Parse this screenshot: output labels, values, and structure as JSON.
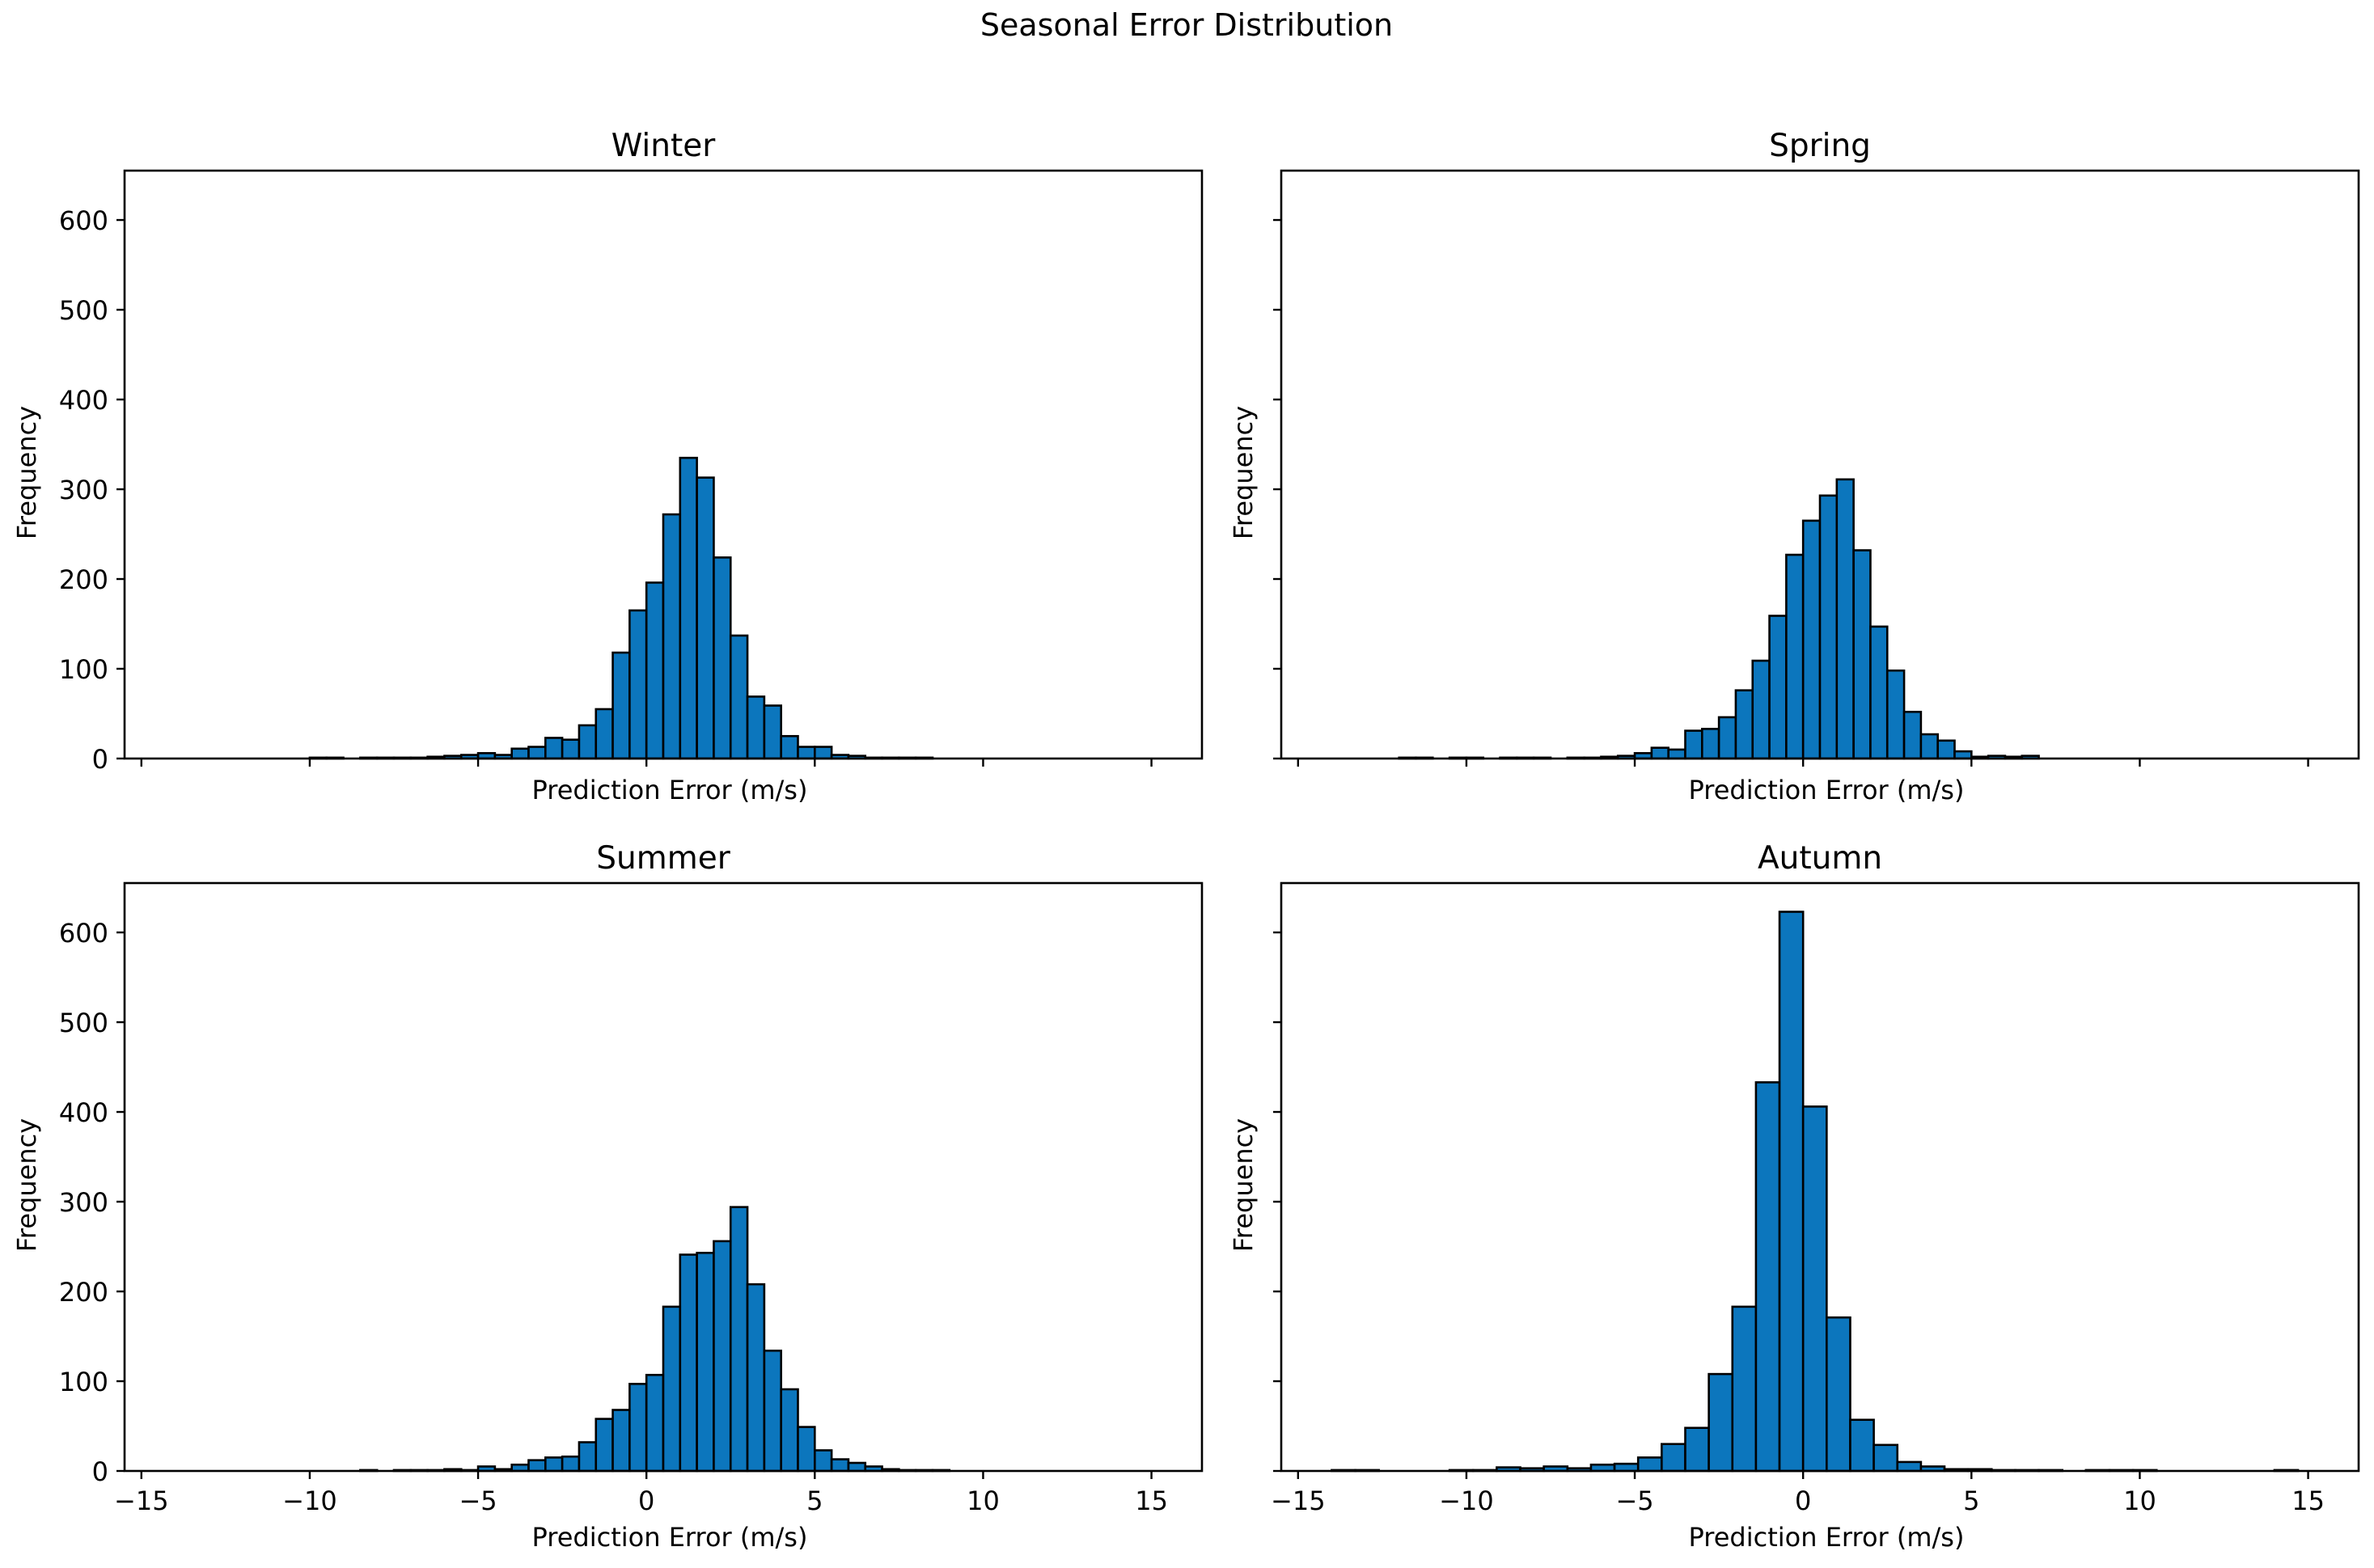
{
  "figure": {
    "title": "Seasonal Error Distribution"
  },
  "colors": {
    "bar_fill": "#0c76bd",
    "bar_edge": "#000000",
    "axes": "#000000"
  },
  "chart_data": [
    {
      "type": "bar",
      "title": "Winter",
      "xlabel": "Prediction Error (m/s)",
      "ylabel": "Frequency",
      "xlim": [
        -15.5,
        16.5
      ],
      "ylim": [
        0,
        655
      ],
      "xticks": [
        -15,
        -10,
        -5,
        0,
        5,
        10,
        15
      ],
      "yticks": [
        0,
        100,
        200,
        300,
        400,
        500,
        600
      ],
      "show_xtick_labels": false,
      "show_ytick_labels": true,
      "bins": [
        [
          -10.0,
          -9.5,
          1
        ],
        [
          -9.5,
          -9.0,
          1
        ],
        [
          -9.0,
          -8.5,
          0
        ],
        [
          -8.5,
          -8.0,
          1
        ],
        [
          -8.0,
          -7.5,
          1
        ],
        [
          -7.5,
          -7.0,
          1
        ],
        [
          -7.0,
          -6.5,
          1
        ],
        [
          -6.5,
          -6.0,
          2
        ],
        [
          -6.0,
          -5.5,
          3
        ],
        [
          -5.5,
          -5.0,
          4
        ],
        [
          -5.0,
          -4.5,
          6
        ],
        [
          -4.5,
          -4.0,
          4
        ],
        [
          -4.0,
          -3.5,
          11
        ],
        [
          -3.5,
          -3.0,
          13
        ],
        [
          -3.0,
          -2.5,
          23
        ],
        [
          -2.5,
          -2.0,
          21
        ],
        [
          -2.0,
          -1.5,
          37
        ],
        [
          -1.5,
          -1.0,
          55
        ],
        [
          -1.0,
          -0.5,
          118
        ],
        [
          -0.5,
          0.0,
          165
        ],
        [
          0.0,
          0.5,
          196
        ],
        [
          0.5,
          1.0,
          272
        ],
        [
          1.0,
          1.5,
          335
        ],
        [
          1.5,
          2.0,
          313
        ],
        [
          2.0,
          2.5,
          224
        ],
        [
          2.5,
          3.0,
          137
        ],
        [
          3.0,
          3.5,
          69
        ],
        [
          3.5,
          4.0,
          59
        ],
        [
          4.0,
          4.5,
          25
        ],
        [
          4.5,
          5.0,
          13
        ],
        [
          5.0,
          5.5,
          13
        ],
        [
          5.5,
          6.0,
          4
        ],
        [
          6.0,
          6.5,
          3
        ],
        [
          6.5,
          7.0,
          1
        ],
        [
          7.0,
          7.5,
          1
        ],
        [
          7.5,
          8.0,
          1
        ],
        [
          8.0,
          8.5,
          1
        ]
      ]
    },
    {
      "type": "bar",
      "title": "Spring",
      "xlabel": "Prediction Error (m/s)",
      "ylabel": "Frequency",
      "xlim": [
        -15.5,
        16.5
      ],
      "ylim": [
        0,
        655
      ],
      "xticks": [
        -15,
        -10,
        -5,
        0,
        5,
        10,
        15
      ],
      "yticks": [
        0,
        100,
        200,
        300,
        400,
        500,
        600
      ],
      "show_xtick_labels": false,
      "show_ytick_labels": false,
      "bins": [
        [
          -12.0,
          -11.5,
          1
        ],
        [
          -11.5,
          -11.0,
          1
        ],
        [
          -11.0,
          -10.5,
          0
        ],
        [
          -10.5,
          -10.0,
          1
        ],
        [
          -10.0,
          -9.5,
          1
        ],
        [
          -9.5,
          -9.0,
          0
        ],
        [
          -9.0,
          -8.5,
          1
        ],
        [
          -8.5,
          -8.0,
          1
        ],
        [
          -8.0,
          -7.5,
          1
        ],
        [
          -7.5,
          -7.0,
          0
        ],
        [
          -7.0,
          -6.5,
          1
        ],
        [
          -6.5,
          -6.0,
          1
        ],
        [
          -6.0,
          -5.5,
          2
        ],
        [
          -5.5,
          -5.0,
          3
        ],
        [
          -5.0,
          -4.5,
          6
        ],
        [
          -4.5,
          -4.0,
          12
        ],
        [
          -4.0,
          -3.5,
          10
        ],
        [
          -3.5,
          -3.0,
          31
        ],
        [
          -3.0,
          -2.5,
          33
        ],
        [
          -2.5,
          -2.0,
          46
        ],
        [
          -2.0,
          -1.5,
          76
        ],
        [
          -1.5,
          -1.0,
          109
        ],
        [
          -1.0,
          -0.5,
          159
        ],
        [
          -0.5,
          0.0,
          227
        ],
        [
          0.0,
          0.5,
          265
        ],
        [
          0.5,
          1.0,
          293
        ],
        [
          1.0,
          1.5,
          311
        ],
        [
          1.5,
          2.0,
          232
        ],
        [
          2.0,
          2.5,
          147
        ],
        [
          2.5,
          3.0,
          98
        ],
        [
          3.0,
          3.5,
          52
        ],
        [
          3.5,
          4.0,
          27
        ],
        [
          4.0,
          4.5,
          20
        ],
        [
          4.5,
          5.0,
          8
        ],
        [
          5.0,
          5.5,
          2
        ],
        [
          5.5,
          6.0,
          3
        ],
        [
          6.0,
          6.5,
          2
        ],
        [
          6.5,
          7.0,
          3
        ]
      ]
    },
    {
      "type": "bar",
      "title": "Summer",
      "xlabel": "Prediction Error (m/s)",
      "ylabel": "Frequency",
      "xlim": [
        -15.5,
        16.5
      ],
      "ylim": [
        0,
        655
      ],
      "xticks": [
        -15,
        -10,
        -5,
        0,
        5,
        10,
        15
      ],
      "yticks": [
        0,
        100,
        200,
        300,
        400,
        500,
        600
      ],
      "xtick_labels": [
        "−15",
        "−10",
        "−5",
        "0",
        "5",
        "10",
        "15"
      ],
      "show_xtick_labels": true,
      "show_ytick_labels": true,
      "bins": [
        [
          -8.5,
          -8.0,
          1
        ],
        [
          -8.0,
          -7.5,
          0
        ],
        [
          -7.5,
          -7.0,
          1
        ],
        [
          -7.0,
          -6.5,
          1
        ],
        [
          -6.5,
          -6.0,
          1
        ],
        [
          -6.0,
          -5.5,
          2
        ],
        [
          -5.5,
          -5.0,
          1
        ],
        [
          -5.0,
          -4.5,
          5
        ],
        [
          -4.5,
          -4.0,
          2
        ],
        [
          -4.0,
          -3.5,
          7
        ],
        [
          -3.5,
          -3.0,
          12
        ],
        [
          -3.0,
          -2.5,
          15
        ],
        [
          -2.5,
          -2.0,
          16
        ],
        [
          -2.0,
          -1.5,
          32
        ],
        [
          -1.5,
          -1.0,
          58
        ],
        [
          -1.0,
          -0.5,
          68
        ],
        [
          -0.5,
          0.0,
          97
        ],
        [
          0.0,
          0.5,
          107
        ],
        [
          0.5,
          1.0,
          183
        ],
        [
          1.0,
          1.5,
          241
        ],
        [
          1.5,
          2.0,
          243
        ],
        [
          2.0,
          2.5,
          256
        ],
        [
          2.5,
          3.0,
          294
        ],
        [
          3.0,
          3.5,
          208
        ],
        [
          3.5,
          4.0,
          134
        ],
        [
          4.0,
          4.5,
          91
        ],
        [
          4.5,
          5.0,
          49
        ],
        [
          5.0,
          5.5,
          23
        ],
        [
          5.5,
          6.0,
          13
        ],
        [
          6.0,
          6.5,
          9
        ],
        [
          6.5,
          7.0,
          5
        ],
        [
          7.0,
          7.5,
          2
        ],
        [
          7.5,
          8.0,
          1
        ],
        [
          8.0,
          8.5,
          1
        ],
        [
          8.5,
          9.0,
          1
        ]
      ]
    },
    {
      "type": "bar",
      "title": "Autumn",
      "xlabel": "Prediction Error (m/s)",
      "ylabel": "Frequency",
      "xlim": [
        -15.5,
        16.5
      ],
      "ylim": [
        0,
        655
      ],
      "xticks": [
        -15,
        -10,
        -5,
        0,
        5,
        10,
        15
      ],
      "yticks": [
        0,
        100,
        200,
        300,
        400,
        500,
        600
      ],
      "xtick_labels": [
        "−15",
        "−10",
        "−5",
        "0",
        "5",
        "10",
        "15"
      ],
      "show_xtick_labels": true,
      "show_ytick_labels": false,
      "bins": [
        [
          -14.0,
          -13.3,
          1
        ],
        [
          -13.3,
          -12.6,
          1
        ],
        [
          -12.6,
          -11.9,
          0
        ],
        [
          -11.9,
          -11.2,
          0
        ],
        [
          -11.2,
          -10.5,
          0
        ],
        [
          -10.5,
          -9.8,
          1
        ],
        [
          -9.8,
          -9.1,
          1
        ],
        [
          -9.1,
          -8.4,
          4
        ],
        [
          -8.4,
          -7.7,
          3
        ],
        [
          -7.7,
          -7.0,
          5
        ],
        [
          -7.0,
          -6.3,
          3
        ],
        [
          -6.3,
          -5.6,
          7
        ],
        [
          -5.6,
          -4.9,
          8
        ],
        [
          -4.9,
          -4.2,
          15
        ],
        [
          -4.2,
          -3.5,
          30
        ],
        [
          -3.5,
          -2.8,
          48
        ],
        [
          -2.8,
          -2.1,
          108
        ],
        [
          -2.1,
          -1.4,
          183
        ],
        [
          -1.4,
          -0.7,
          433
        ],
        [
          -0.7,
          0.0,
          623
        ],
        [
          0.0,
          0.7,
          406
        ],
        [
          0.7,
          1.4,
          171
        ],
        [
          1.4,
          2.1,
          57
        ],
        [
          2.1,
          2.8,
          29
        ],
        [
          2.8,
          3.5,
          10
        ],
        [
          3.5,
          4.2,
          5
        ],
        [
          4.2,
          4.9,
          2
        ],
        [
          4.9,
          5.6,
          2
        ],
        [
          5.6,
          6.3,
          1
        ],
        [
          6.3,
          7.0,
          1
        ],
        [
          7.0,
          7.7,
          1
        ],
        [
          7.7,
          8.4,
          0
        ],
        [
          8.4,
          9.1,
          1
        ],
        [
          9.1,
          9.8,
          1
        ],
        [
          9.8,
          10.5,
          1
        ],
        [
          10.5,
          11.2,
          0
        ],
        [
          11.2,
          11.9,
          0
        ],
        [
          11.9,
          12.6,
          0
        ],
        [
          12.6,
          13.3,
          0
        ],
        [
          13.3,
          14.0,
          0
        ],
        [
          14.0,
          14.7,
          1
        ]
      ]
    }
  ]
}
